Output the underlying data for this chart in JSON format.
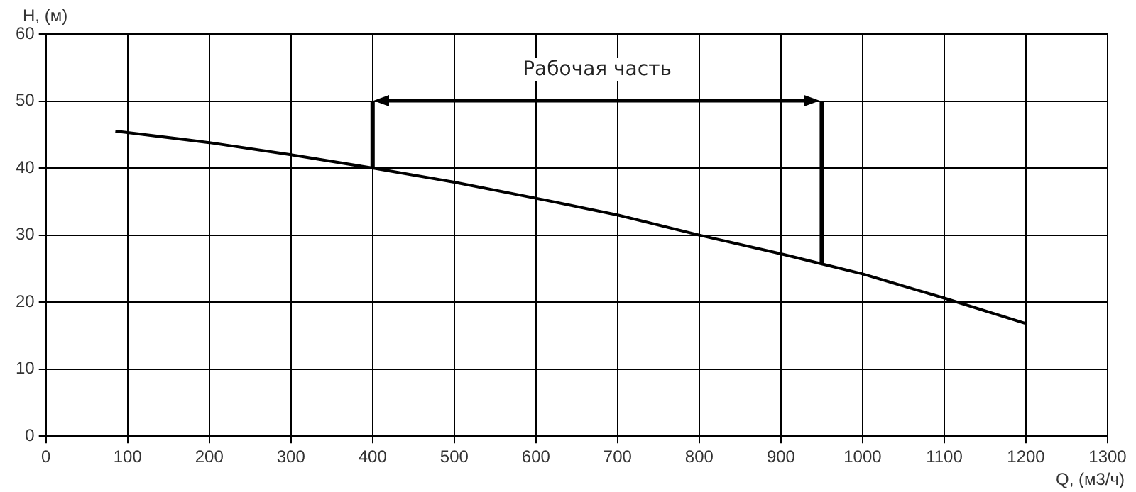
{
  "chart_data": {
    "type": "line",
    "xlabel": "Q, (м3/ч)",
    "ylabel": "H, (м)",
    "xlim": [
      0,
      1300
    ],
    "xticks": [
      0,
      100,
      200,
      300,
      400,
      500,
      600,
      700,
      800,
      900,
      1000,
      1100,
      1200,
      1300
    ],
    "ylim": [
      0,
      60
    ],
    "yticks": [
      0,
      10,
      20,
      30,
      40,
      50,
      60
    ],
    "grid": true,
    "marker": "none",
    "line_style": "solid",
    "series": [
      {
        "color": "#000000",
        "x": [
          85,
          100,
          200,
          300,
          400,
          500,
          600,
          700,
          800,
          900,
          950,
          1000,
          1100,
          1200
        ],
        "values": [
          45.5,
          45.3,
          43.8,
          42,
          40,
          37.9,
          35.5,
          33,
          30,
          27.2,
          25.7,
          24.2,
          20.6,
          16.8
        ]
      },
      {
        "color": "#000000",
        "x": [
          400,
          400
        ],
        "values": [
          40,
          50
        ]
      },
      {
        "color": "#000000",
        "x": [
          950,
          950
        ],
        "values": [
          25.7,
          50
        ]
      }
    ],
    "annotations": [
      "Рабочая часть"
    ]
  }
}
